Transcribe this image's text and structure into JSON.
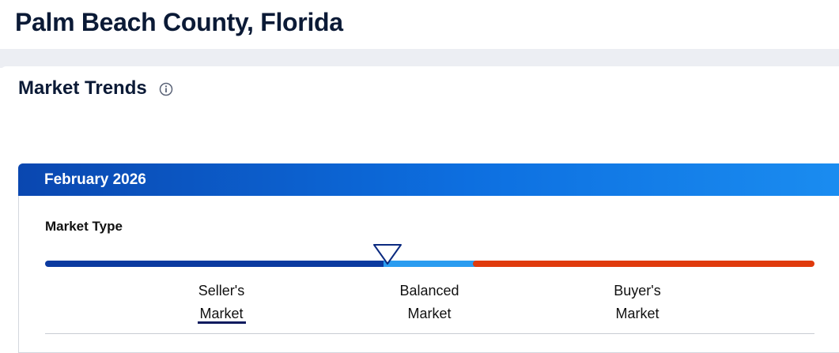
{
  "header": {
    "title": "Palm Beach County, Florida"
  },
  "section": {
    "title": "Market Trends",
    "card": {
      "period": "February 2026",
      "market_type": {
        "label": "Market Type",
        "options": [
          "Seller's Market",
          "Balanced Market",
          "Buyer's Market"
        ]
      }
    }
  }
}
